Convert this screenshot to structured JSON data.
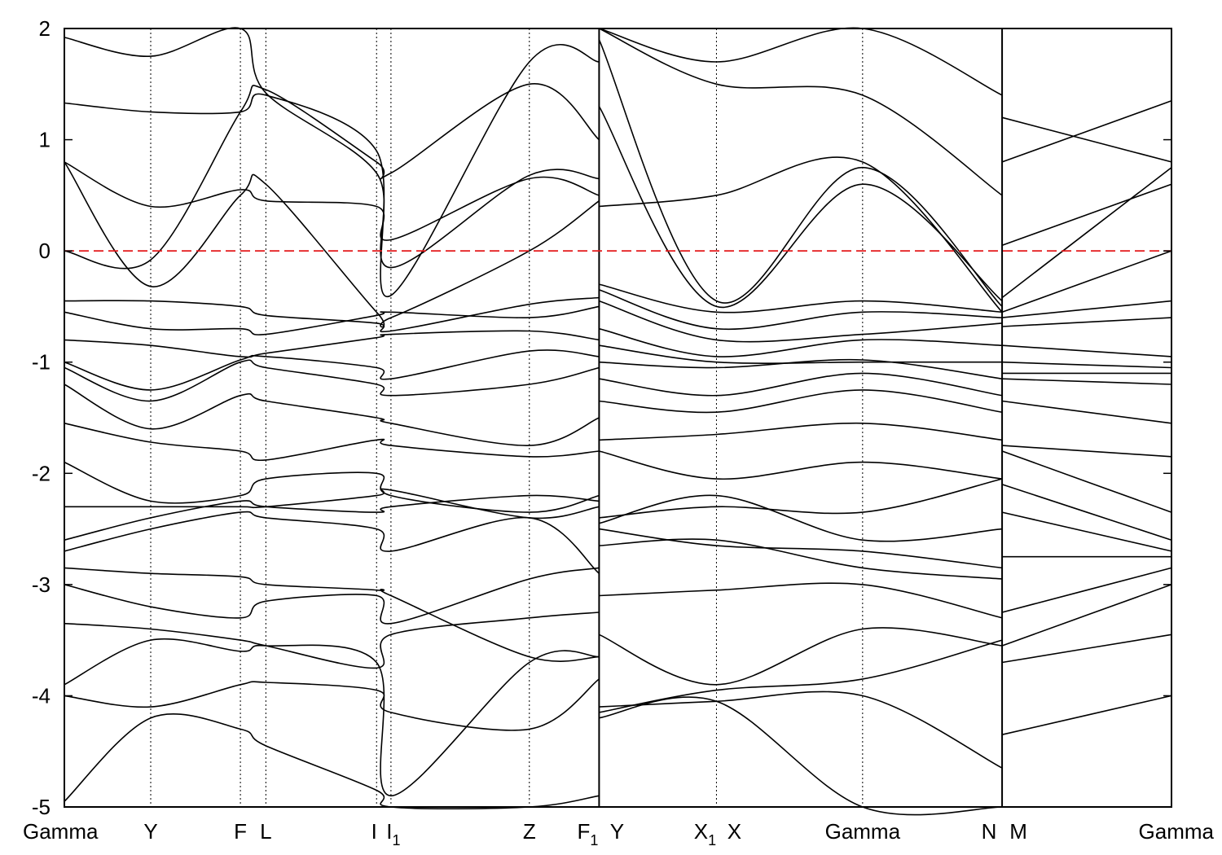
{
  "chart_data": {
    "type": "line",
    "title": "",
    "xlabel": "",
    "ylabel": "",
    "ylim": [
      -5,
      2
    ],
    "yticks": [
      2,
      1,
      0,
      -1,
      -2,
      -3,
      -4,
      -5
    ],
    "yticks_labels": [
      "2",
      "1",
      "0",
      "-1",
      "-2",
      "-3",
      "-4",
      "-5"
    ],
    "x_points": [
      {
        "label": "Gamma",
        "sub": "",
        "x": 0.0
      },
      {
        "label": "Y",
        "sub": "",
        "x": 0.078
      },
      {
        "label": "F",
        "sub": "",
        "x": 0.159
      },
      {
        "label": "L",
        "sub": "",
        "x": 0.182
      },
      {
        "label": "I",
        "sub": "",
        "x": 0.282
      },
      {
        "label": "I",
        "sub": "1",
        "x": 0.295
      },
      {
        "label": "Z",
        "sub": "",
        "x": 0.42
      },
      {
        "label": "F",
        "sub": "1",
        "x": 0.483
      },
      {
        "label": "Y",
        "sub": "",
        "x": 0.483
      },
      {
        "label": "X",
        "sub": "1",
        "x": 0.589
      },
      {
        "label": "X",
        "sub": "",
        "x": 0.589
      },
      {
        "label": "Gamma",
        "sub": "",
        "x": 0.721
      },
      {
        "label": "N",
        "sub": "",
        "x": 0.847
      },
      {
        "label": "M",
        "sub": "",
        "x": 0.847
      },
      {
        "label": "Gamma",
        "sub": "",
        "x": 1.0
      }
    ],
    "breaks": [
      0.483,
      0.847
    ],
    "fermi_level": 0,
    "fermi_color": "#e41a1c",
    "band_color": "#000000",
    "grid": "vertical dotted lines at high-symmetry points",
    "series": [
      {
        "segment": 0,
        "x": [
          0.0,
          0.078,
          0.159,
          0.182,
          0.282,
          0.295,
          0.42,
          0.483
        ],
        "y": [
          0.8,
          0.4,
          0.55,
          0.45,
          0.4,
          0.1,
          0.65,
          0.5
        ]
      },
      {
        "segment": 0,
        "x": [
          0.0,
          0.078,
          0.159,
          0.182,
          0.282,
          0.295,
          0.42,
          0.483
        ],
        "y": [
          0.8,
          -0.32,
          0.5,
          0.6,
          -0.55,
          -0.6,
          0.0,
          0.45
        ]
      },
      {
        "segment": 0,
        "x": [
          0.0,
          0.078,
          0.159,
          0.182,
          0.282,
          0.295,
          0.42,
          0.483
        ],
        "y": [
          0.0,
          -0.08,
          1.25,
          1.45,
          0.8,
          0.7,
          1.5,
          1.0
        ]
      },
      {
        "segment": 0,
        "x": [
          0.0,
          0.078,
          0.159,
          0.182,
          0.282,
          0.295,
          0.42,
          0.483
        ],
        "y": [
          1.33,
          1.25,
          1.25,
          1.4,
          0.9,
          -0.4,
          1.7,
          1.7
        ]
      },
      {
        "segment": 0,
        "x": [
          0.0,
          0.078,
          0.159,
          0.182,
          0.282,
          0.295,
          0.42,
          0.483
        ],
        "y": [
          1.92,
          1.75,
          2.0,
          1.42,
          0.7,
          -0.15,
          0.68,
          0.65
        ]
      },
      {
        "segment": 0,
        "x": [
          0.0,
          0.078,
          0.159,
          0.182,
          0.282,
          0.295,
          0.42,
          0.483
        ],
        "y": [
          -0.45,
          -0.45,
          -0.5,
          -0.58,
          -0.65,
          -0.72,
          -0.48,
          -0.42
        ]
      },
      {
        "segment": 0,
        "x": [
          0.0,
          0.078,
          0.159,
          0.182,
          0.282,
          0.295,
          0.42,
          0.483
        ],
        "y": [
          -0.55,
          -0.7,
          -0.7,
          -0.75,
          -0.58,
          -0.55,
          -0.6,
          -0.5
        ]
      },
      {
        "segment": 0,
        "x": [
          0.0,
          0.078,
          0.159,
          0.182,
          0.282,
          0.295,
          0.42,
          0.483
        ],
        "y": [
          -0.8,
          -0.85,
          -0.95,
          -0.92,
          -0.78,
          -0.75,
          -0.72,
          -0.8
        ]
      },
      {
        "segment": 0,
        "x": [
          0.0,
          0.078,
          0.159,
          0.182,
          0.282,
          0.295,
          0.42,
          0.483
        ],
        "y": [
          -1.0,
          -1.25,
          -0.98,
          -0.95,
          -1.05,
          -1.15,
          -0.9,
          -0.95
        ]
      },
      {
        "segment": 0,
        "x": [
          0.0,
          0.078,
          0.159,
          0.182,
          0.282,
          0.295,
          0.42,
          0.483
        ],
        "y": [
          -1.05,
          -1.35,
          -1.0,
          -1.05,
          -1.2,
          -1.3,
          -1.2,
          -1.05
        ]
      },
      {
        "segment": 0,
        "x": [
          0.0,
          0.078,
          0.159,
          0.182,
          0.282,
          0.295,
          0.42,
          0.483
        ],
        "y": [
          -1.2,
          -1.6,
          -1.3,
          -1.35,
          -1.5,
          -1.55,
          -1.75,
          -1.5
        ]
      },
      {
        "segment": 0,
        "x": [
          0.0,
          0.078,
          0.159,
          0.182,
          0.282,
          0.295,
          0.42,
          0.483
        ],
        "y": [
          -1.55,
          -1.72,
          -1.8,
          -1.88,
          -1.7,
          -1.75,
          -1.85,
          -1.8
        ]
      },
      {
        "segment": 0,
        "x": [
          0.0,
          0.078,
          0.159,
          0.182,
          0.282,
          0.295,
          0.42,
          0.483
        ],
        "y": [
          -1.9,
          -2.25,
          -2.2,
          -2.05,
          -2.0,
          -2.2,
          -2.35,
          -2.2
        ]
      },
      {
        "segment": 0,
        "x": [
          0.0,
          0.078,
          0.159,
          0.182,
          0.282,
          0.295,
          0.42,
          0.483
        ],
        "y": [
          -2.3,
          -2.3,
          -2.3,
          -2.3,
          -2.2,
          -2.15,
          -2.4,
          -2.3
        ]
      },
      {
        "segment": 0,
        "x": [
          0.0,
          0.078,
          0.159,
          0.182,
          0.282,
          0.295,
          0.42,
          0.483
        ],
        "y": [
          -2.6,
          -2.4,
          -2.25,
          -2.3,
          -2.35,
          -2.3,
          -2.2,
          -2.25
        ]
      },
      {
        "segment": 0,
        "x": [
          0.0,
          0.078,
          0.159,
          0.182,
          0.282,
          0.295,
          0.42,
          0.483
        ],
        "y": [
          -2.7,
          -2.5,
          -2.35,
          -2.4,
          -2.5,
          -2.7,
          -2.4,
          -2.9
        ]
      },
      {
        "segment": 0,
        "x": [
          0.0,
          0.078,
          0.159,
          0.182,
          0.282,
          0.295,
          0.42,
          0.483
        ],
        "y": [
          -2.85,
          -2.9,
          -2.93,
          -3.0,
          -3.05,
          -3.1,
          -3.65,
          -3.65
        ]
      },
      {
        "segment": 0,
        "x": [
          0.0,
          0.078,
          0.159,
          0.182,
          0.282,
          0.295,
          0.42,
          0.483
        ],
        "y": [
          -3.0,
          -3.2,
          -3.3,
          -3.15,
          -3.1,
          -3.35,
          -2.95,
          -2.85
        ]
      },
      {
        "segment": 0,
        "x": [
          0.0,
          0.078,
          0.159,
          0.182,
          0.282,
          0.295,
          0.42,
          0.483
        ],
        "y": [
          -3.35,
          -3.4,
          -3.5,
          -3.55,
          -3.75,
          -3.45,
          -3.3,
          -3.25
        ]
      },
      {
        "segment": 0,
        "x": [
          0.0,
          0.078,
          0.159,
          0.182,
          0.282,
          0.295,
          0.42,
          0.483
        ],
        "y": [
          -3.9,
          -3.5,
          -3.6,
          -3.55,
          -3.7,
          -4.9,
          -3.7,
          -3.65
        ]
      },
      {
        "segment": 0,
        "x": [
          0.0,
          0.078,
          0.159,
          0.182,
          0.282,
          0.295,
          0.42,
          0.483
        ],
        "y": [
          -4.0,
          -4.1,
          -3.9,
          -3.88,
          -3.95,
          -4.15,
          -4.3,
          -3.85
        ]
      },
      {
        "segment": 0,
        "x": [
          0.0,
          0.078,
          0.159,
          0.182,
          0.282,
          0.295,
          0.42,
          0.483
        ],
        "y": [
          -4.95,
          -4.2,
          -4.3,
          -4.45,
          -4.85,
          -5.0,
          -5.0,
          -4.9
        ]
      },
      {
        "segment": 1,
        "x": [
          0.483,
          0.589,
          0.721,
          0.847
        ],
        "y": [
          1.9,
          -0.45,
          0.75,
          -0.5
        ]
      },
      {
        "segment": 1,
        "x": [
          0.483,
          0.589,
          0.721,
          0.847
        ],
        "y": [
          1.3,
          -0.5,
          0.6,
          -0.45
        ]
      },
      {
        "segment": 1,
        "x": [
          0.483,
          0.589,
          0.721,
          0.847
        ],
        "y": [
          0.4,
          0.5,
          0.8,
          -0.55
        ]
      },
      {
        "segment": 1,
        "x": [
          0.483,
          0.589,
          0.721,
          0.847
        ],
        "y": [
          2.0,
          1.5,
          1.4,
          0.5
        ]
      },
      {
        "segment": 1,
        "x": [
          0.483,
          0.589,
          0.721,
          0.847
        ],
        "y": [
          2.0,
          1.7,
          2.0,
          1.4
        ]
      },
      {
        "segment": 1,
        "x": [
          0.483,
          0.589,
          0.721,
          0.847
        ],
        "y": [
          -0.3,
          -0.55,
          -0.45,
          -0.55
        ]
      },
      {
        "segment": 1,
        "x": [
          0.483,
          0.589,
          0.721,
          0.847
        ],
        "y": [
          -0.35,
          -0.7,
          -0.55,
          -0.6
        ]
      },
      {
        "segment": 1,
        "x": [
          0.483,
          0.589,
          0.721,
          0.847
        ],
        "y": [
          -0.45,
          -0.8,
          -0.75,
          -0.65
        ]
      },
      {
        "segment": 1,
        "x": [
          0.483,
          0.589,
          0.721,
          0.847
        ],
        "y": [
          -0.7,
          -0.95,
          -0.8,
          -0.85
        ]
      },
      {
        "segment": 1,
        "x": [
          0.483,
          0.589,
          0.721,
          0.847
        ],
        "y": [
          -0.85,
          -1.0,
          -1.0,
          -1.0
        ]
      },
      {
        "segment": 1,
        "x": [
          0.483,
          0.589,
          0.721,
          0.847
        ],
        "y": [
          -1.0,
          -1.05,
          -0.98,
          -1.15
        ]
      },
      {
        "segment": 1,
        "x": [
          0.483,
          0.589,
          0.721,
          0.847
        ],
        "y": [
          -1.15,
          -1.3,
          -1.1,
          -1.3
        ]
      },
      {
        "segment": 1,
        "x": [
          0.483,
          0.589,
          0.721,
          0.847
        ],
        "y": [
          -1.35,
          -1.45,
          -1.25,
          -1.45
        ]
      },
      {
        "segment": 1,
        "x": [
          0.483,
          0.589,
          0.721,
          0.847
        ],
        "y": [
          -1.7,
          -1.65,
          -1.55,
          -1.7
        ]
      },
      {
        "segment": 1,
        "x": [
          0.483,
          0.589,
          0.721,
          0.847
        ],
        "y": [
          -1.8,
          -2.05,
          -1.9,
          -2.05
        ]
      },
      {
        "segment": 1,
        "x": [
          0.483,
          0.589,
          0.721,
          0.847
        ],
        "y": [
          -2.4,
          -2.3,
          -2.35,
          -2.05
        ]
      },
      {
        "segment": 1,
        "x": [
          0.483,
          0.589,
          0.721,
          0.847
        ],
        "y": [
          -2.45,
          -2.2,
          -2.6,
          -2.5
        ]
      },
      {
        "segment": 1,
        "x": [
          0.483,
          0.589,
          0.721,
          0.847
        ],
        "y": [
          -2.5,
          -2.65,
          -2.7,
          -2.85
        ]
      },
      {
        "segment": 1,
        "x": [
          0.483,
          0.589,
          0.721,
          0.847
        ],
        "y": [
          -2.65,
          -2.6,
          -2.85,
          -2.95
        ]
      },
      {
        "segment": 1,
        "x": [
          0.483,
          0.589,
          0.721,
          0.847
        ],
        "y": [
          -3.1,
          -3.05,
          -3.0,
          -3.3
        ]
      },
      {
        "segment": 1,
        "x": [
          0.483,
          0.589,
          0.721,
          0.847
        ],
        "y": [
          -3.45,
          -3.9,
          -3.4,
          -3.55
        ]
      },
      {
        "segment": 1,
        "x": [
          0.483,
          0.589,
          0.721,
          0.847
        ],
        "y": [
          -4.15,
          -3.95,
          -3.85,
          -3.5
        ]
      },
      {
        "segment": 1,
        "x": [
          0.483,
          0.589,
          0.721,
          0.847
        ],
        "y": [
          -4.1,
          -4.05,
          -4.0,
          -4.65
        ]
      },
      {
        "segment": 1,
        "x": [
          0.483,
          0.589,
          0.721,
          0.847
        ],
        "y": [
          -4.2,
          -4.05,
          -5.0,
          -5.0
        ]
      },
      {
        "segment": 2,
        "x": [
          0.847,
          1.0
        ],
        "y": [
          1.2,
          0.8
        ]
      },
      {
        "segment": 2,
        "x": [
          0.847,
          1.0
        ],
        "y": [
          0.8,
          1.35
        ]
      },
      {
        "segment": 2,
        "x": [
          0.847,
          1.0
        ],
        "y": [
          0.05,
          0.6
        ]
      },
      {
        "segment": 2,
        "x": [
          0.847,
          1.0
        ],
        "y": [
          -0.42,
          0.75
        ]
      },
      {
        "segment": 2,
        "x": [
          0.847,
          1.0
        ],
        "y": [
          -0.55,
          0.0
        ]
      },
      {
        "segment": 2,
        "x": [
          0.847,
          1.0
        ],
        "y": [
          -0.6,
          -0.45
        ]
      },
      {
        "segment": 2,
        "x": [
          0.847,
          1.0
        ],
        "y": [
          -0.68,
          -0.6
        ]
      },
      {
        "segment": 2,
        "x": [
          0.847,
          1.0
        ],
        "y": [
          -0.85,
          -0.95
        ]
      },
      {
        "segment": 2,
        "x": [
          0.847,
          1.0
        ],
        "y": [
          -1.0,
          -1.05
        ]
      },
      {
        "segment": 2,
        "x": [
          0.847,
          1.0
        ],
        "y": [
          -1.1,
          -1.1
        ]
      },
      {
        "segment": 2,
        "x": [
          0.847,
          1.0
        ],
        "y": [
          -1.15,
          -1.2
        ]
      },
      {
        "segment": 2,
        "x": [
          0.847,
          1.0
        ],
        "y": [
          -1.35,
          -1.55
        ]
      },
      {
        "segment": 2,
        "x": [
          0.847,
          1.0
        ],
        "y": [
          -1.75,
          -1.85
        ]
      },
      {
        "segment": 2,
        "x": [
          0.847,
          1.0
        ],
        "y": [
          -1.8,
          -2.35
        ]
      },
      {
        "segment": 2,
        "x": [
          0.847,
          1.0
        ],
        "y": [
          -2.1,
          -2.6
        ]
      },
      {
        "segment": 2,
        "x": [
          0.847,
          1.0
        ],
        "y": [
          -2.35,
          -2.7
        ]
      },
      {
        "segment": 2,
        "x": [
          0.847,
          1.0
        ],
        "y": [
          -2.75,
          -2.75
        ]
      },
      {
        "segment": 2,
        "x": [
          0.847,
          1.0
        ],
        "y": [
          -3.25,
          -2.85
        ]
      },
      {
        "segment": 2,
        "x": [
          0.847,
          1.0
        ],
        "y": [
          -3.55,
          -3.0
        ]
      },
      {
        "segment": 2,
        "x": [
          0.847,
          1.0
        ],
        "y": [
          -3.7,
          -3.45
        ]
      },
      {
        "segment": 2,
        "x": [
          0.847,
          1.0
        ],
        "y": [
          -4.35,
          -4.0
        ]
      }
    ]
  }
}
